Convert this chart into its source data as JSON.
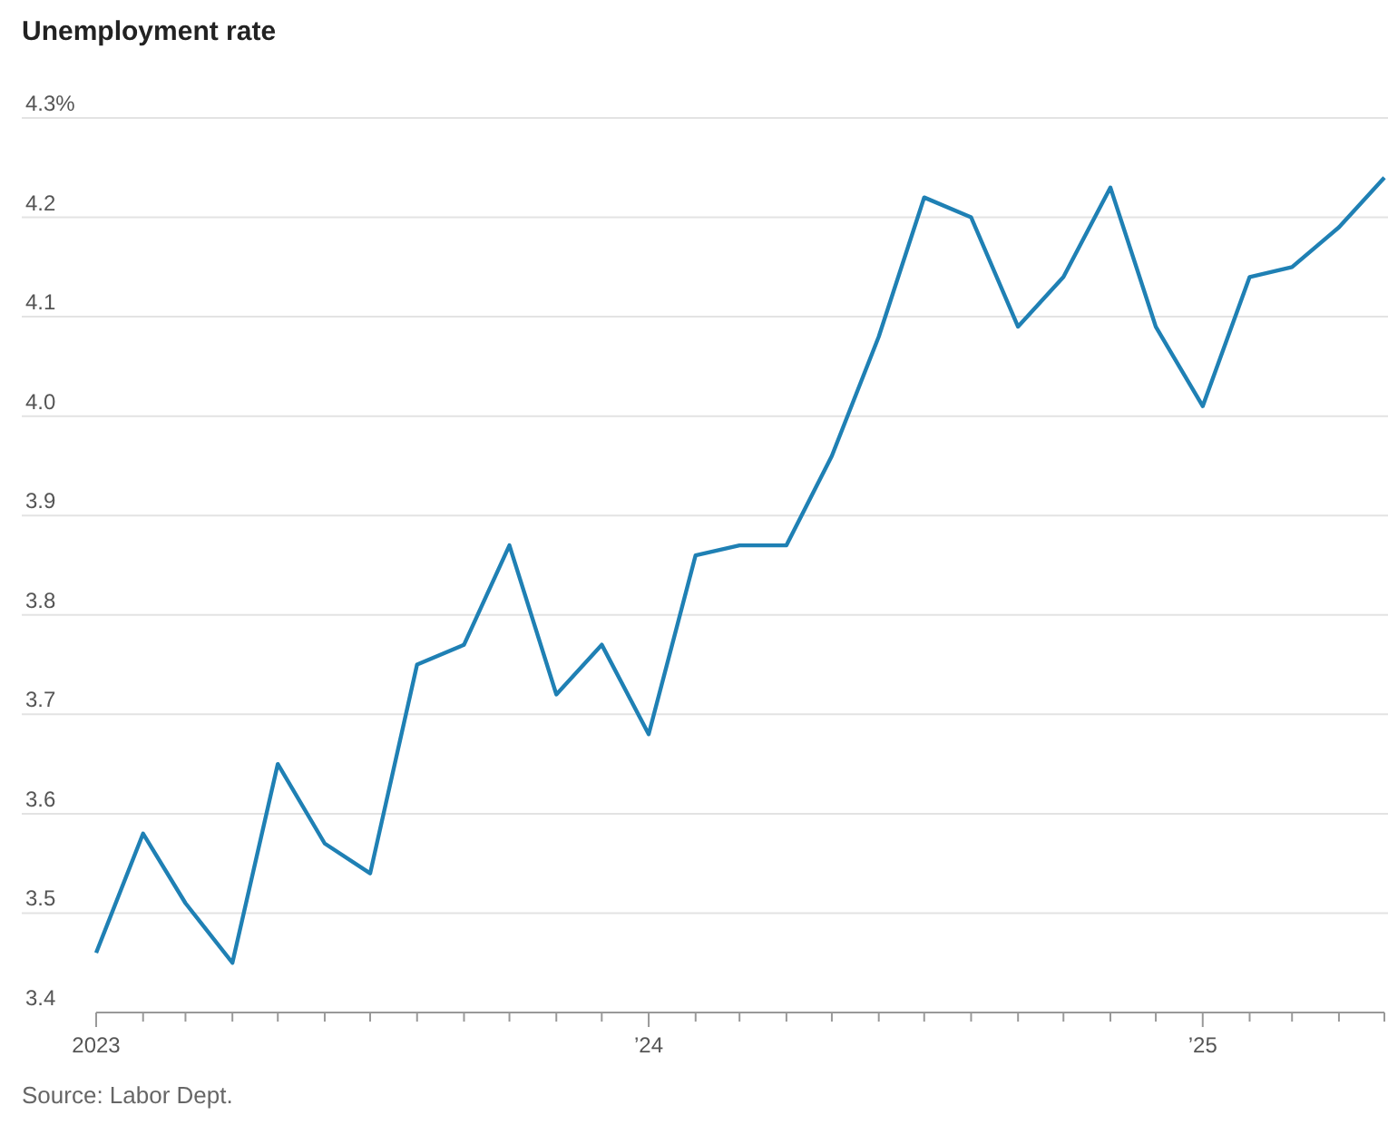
{
  "chart_data": {
    "type": "line",
    "title": "Unemployment rate",
    "x": [
      "2023-01",
      "2023-02",
      "2023-03",
      "2023-04",
      "2023-05",
      "2023-06",
      "2023-07",
      "2023-08",
      "2023-09",
      "2023-10",
      "2023-11",
      "2023-12",
      "2024-01",
      "2024-02",
      "2024-03",
      "2024-04",
      "2024-05",
      "2024-06",
      "2024-07",
      "2024-08",
      "2024-09",
      "2024-10",
      "2024-11",
      "2024-12",
      "2025-01",
      "2025-02",
      "2025-03",
      "2025-04",
      "2025-05"
    ],
    "series": [
      {
        "color": "#1f80b4",
        "values": [
          3.46,
          3.58,
          3.51,
          3.45,
          3.65,
          3.57,
          3.54,
          3.75,
          3.77,
          3.87,
          3.72,
          3.77,
          3.68,
          3.86,
          3.87,
          3.87,
          3.96,
          4.08,
          4.22,
          4.2,
          4.09,
          4.14,
          4.23,
          4.09,
          4.01,
          4.14,
          4.15,
          4.19,
          4.24
        ]
      }
    ],
    "xlim": [
      "2023-01",
      "2025-05"
    ],
    "xticks": [
      {
        "value": "2023-01",
        "label": "2023"
      },
      {
        "value": "2023-02",
        "label": null
      },
      {
        "value": "2023-03",
        "label": null
      },
      {
        "value": "2023-04",
        "label": null
      },
      {
        "value": "2023-05",
        "label": null
      },
      {
        "value": "2023-06",
        "label": null
      },
      {
        "value": "2023-07",
        "label": null
      },
      {
        "value": "2023-08",
        "label": null
      },
      {
        "value": "2023-09",
        "label": null
      },
      {
        "value": "2023-10",
        "label": null
      },
      {
        "value": "2023-11",
        "label": null
      },
      {
        "value": "2023-12",
        "label": null
      },
      {
        "value": "2024-01",
        "label": "’24"
      },
      {
        "value": "2024-02",
        "label": null
      },
      {
        "value": "2024-03",
        "label": null
      },
      {
        "value": "2024-04",
        "label": null
      },
      {
        "value": "2024-05",
        "label": null
      },
      {
        "value": "2024-06",
        "label": null
      },
      {
        "value": "2024-07",
        "label": null
      },
      {
        "value": "2024-08",
        "label": null
      },
      {
        "value": "2024-09",
        "label": null
      },
      {
        "value": "2024-10",
        "label": null
      },
      {
        "value": "2024-11",
        "label": null
      },
      {
        "value": "2024-12",
        "label": null
      },
      {
        "value": "2025-01",
        "label": "’25"
      },
      {
        "value": "2025-02",
        "label": null
      },
      {
        "value": "2025-03",
        "label": null
      },
      {
        "value": "2025-04",
        "label": null
      },
      {
        "value": "2025-05",
        "label": null
      }
    ],
    "ylim": [
      3.4,
      4.3
    ],
    "yticks": [
      3.4,
      3.5,
      3.6,
      3.7,
      3.8,
      3.9,
      {
        "value": 4.0,
        "label": "4.0"
      },
      4.1,
      4.2,
      {
        "value": 4.3,
        "label": "4.3%"
      }
    ],
    "grid": "y",
    "marker": "none",
    "line_style": "solid",
    "annotations": [
      "Source: Labor Dept."
    ]
  }
}
